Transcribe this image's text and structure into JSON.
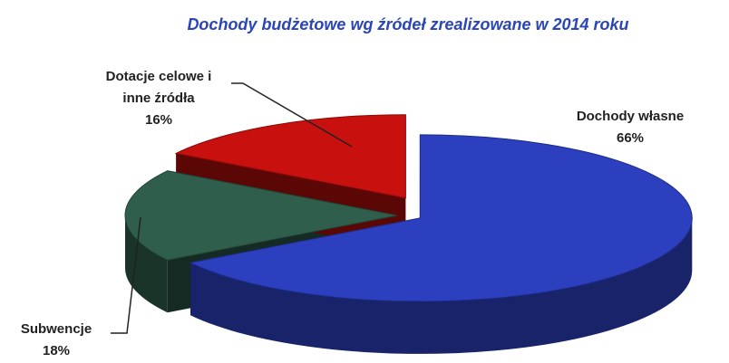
{
  "chart_data": {
    "type": "pie3d",
    "title": "Dochody budżetowe wg źródeł zrealizowane w 2014 roku",
    "categories": [
      "Dochody własne",
      "Subwencje",
      "Dotacje celowe i inne źródła"
    ],
    "values": [
      66,
      18,
      16
    ],
    "value_labels": [
      "66%",
      "18%",
      "16%"
    ],
    "colors": [
      "#2b3fbf",
      "#2f5e4c",
      "#c8100e"
    ]
  }
}
